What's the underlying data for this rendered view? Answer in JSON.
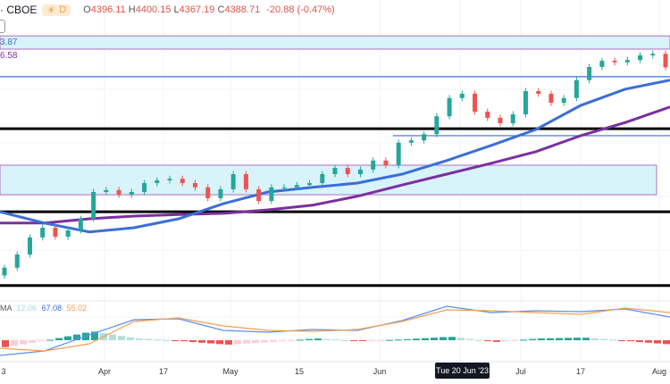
{
  "header": {
    "symbol_suffix": "· CBOE",
    "session_icon": "sun-icon",
    "interval": "D",
    "o_label": "O",
    "o": "4396.11",
    "h_label": "H",
    "h": "4400.15",
    "l_label": "L",
    "l": "4367.19",
    "c_label": "C",
    "c": "4388.71",
    "change": "-20.88 (-0.47%)"
  },
  "ma_labels": {
    "ma20": "3.87",
    "ma50": "6.58"
  },
  "macd_legend": {
    "name": "MA",
    "hist": "12.06",
    "macd": "67.08",
    "signal": "55.02"
  },
  "colors": {
    "up": "#26a69a",
    "down": "#ef5350",
    "ma20": "#3a6fd8",
    "ma50": "#7b2fa0",
    "macd": "#5b8ff0",
    "signal": "#f0a050",
    "zone": "#d9f3fb"
  },
  "chart_data": {
    "type": "candlestick",
    "closes": [
      3873,
      3907,
      3951,
      3976,
      3953,
      3969,
      3999,
      4068,
      4073,
      4061,
      4068,
      4091,
      4098,
      4102,
      4091,
      4080,
      4052,
      4075,
      4114,
      4075,
      4045,
      4080,
      4080,
      4086,
      4091,
      4114,
      4130,
      4114,
      4126,
      4149,
      4137,
      4195,
      4201,
      4217,
      4263,
      4310,
      4321,
      4275,
      4259,
      4245,
      4268,
      4328,
      4321,
      4298,
      4310,
      4356,
      4390,
      4406,
      4402,
      4408,
      4420,
      4424,
      4389
    ],
    "ma20": [
      4017,
      3988,
      3965,
      3976,
      3999,
      4038,
      4068,
      4080,
      4091,
      4114,
      4149,
      4188,
      4229,
      4291,
      4333,
      4356
    ],
    "ma50": [
      3988,
      3988,
      3999,
      4006,
      4010,
      4013,
      4022,
      4034,
      4057,
      4086,
      4114,
      4142,
      4172,
      4213,
      4247,
      4287
    ],
    "levels": [
      {
        "price": 4365,
        "kind": "thin-blue"
      },
      {
        "price": 4231,
        "kind": "black"
      },
      {
        "price": 4017,
        "kind": "black"
      },
      {
        "price": 3827,
        "kind": "black"
      }
    ],
    "zones": [
      {
        "from": 4436,
        "to": 4470
      },
      {
        "from": 4061,
        "to": 4137
      }
    ],
    "segment": {
      "price": 4213
    },
    "price_range": [
      3790,
      4500
    ],
    "macd": [
      -34,
      -24,
      12,
      46,
      48,
      22,
      18,
      24,
      22,
      44,
      76,
      62,
      66,
      64,
      70,
      52
    ],
    "signal": [
      -18,
      -24,
      -8,
      42,
      50,
      32,
      22,
      20,
      24,
      42,
      68,
      66,
      62,
      58,
      72,
      62
    ],
    "x_labels": [
      "3",
      "Apr",
      "17",
      "May",
      "15",
      "Jun",
      "Jul",
      "17",
      "Aug"
    ],
    "crosshair_label": "Tue 20 Jun '23"
  }
}
